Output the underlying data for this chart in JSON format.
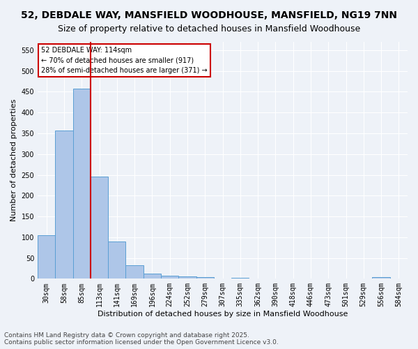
{
  "title_line1": "52, DEBDALE WAY, MANSFIELD WOODHOUSE, MANSFIELD, NG19 7NN",
  "title_line2": "Size of property relative to detached houses in Mansfield Woodhouse",
  "xlabel": "Distribution of detached houses by size in Mansfield Woodhouse",
  "ylabel": "Number of detached properties",
  "bar_values": [
    105,
    357,
    457,
    245,
    90,
    32,
    13,
    8,
    5,
    4,
    0,
    3,
    0,
    0,
    0,
    0,
    0,
    0,
    0,
    4,
    0
  ],
  "categories": [
    "30sqm",
    "58sqm",
    "85sqm",
    "113sqm",
    "141sqm",
    "169sqm",
    "196sqm",
    "224sqm",
    "252sqm",
    "279sqm",
    "307sqm",
    "335sqm",
    "362sqm",
    "390sqm",
    "418sqm",
    "446sqm",
    "473sqm",
    "501sqm",
    "529sqm",
    "556sqm",
    "584sqm"
  ],
  "bar_color": "#aec6e8",
  "bar_edge_color": "#5a9fd4",
  "vertical_line_x": 2.5,
  "vertical_line_color": "#cc0000",
  "annotation_text": "52 DEBDALE WAY: 114sqm\n← 70% of detached houses are smaller (917)\n28% of semi-detached houses are larger (371) →",
  "annotation_box_color": "#cc0000",
  "annotation_text_color": "#000000",
  "ylim": [
    0,
    570
  ],
  "yticks": [
    0,
    50,
    100,
    150,
    200,
    250,
    300,
    350,
    400,
    450,
    500,
    550
  ],
  "footnote": "Contains HM Land Registry data © Crown copyright and database right 2025.\nContains public sector information licensed under the Open Government Licence v3.0.",
  "background_color": "#eef2f8",
  "grid_color": "#ffffff",
  "title_fontsize": 10,
  "subtitle_fontsize": 9,
  "axis_label_fontsize": 8,
  "tick_fontsize": 7,
  "footnote_fontsize": 6.5
}
